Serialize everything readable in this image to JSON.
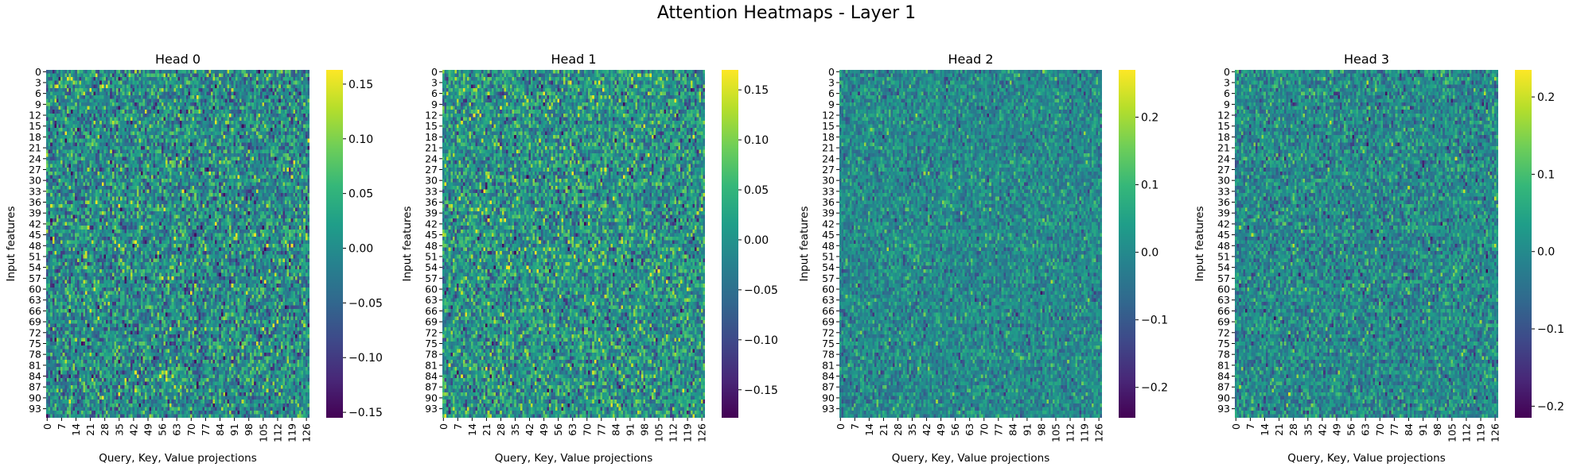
{
  "figure_title": "Attention Heatmaps - Layer 1",
  "chart_data": [
    {
      "type": "heatmap",
      "title": "Head 0",
      "xlabel": "Query, Key, Value projections",
      "ylabel": "Input features",
      "rows": 96,
      "cols": 128,
      "x_ticks": [
        0,
        7,
        14,
        21,
        28,
        35,
        42,
        49,
        56,
        63,
        70,
        77,
        84,
        91,
        98,
        105,
        112,
        119,
        126
      ],
      "y_ticks": [
        0,
        3,
        6,
        9,
        12,
        15,
        18,
        21,
        24,
        27,
        30,
        33,
        36,
        39,
        42,
        45,
        48,
        51,
        54,
        57,
        60,
        63,
        66,
        69,
        72,
        75,
        78,
        81,
        84,
        87,
        90,
        93
      ],
      "colormap": "viridis",
      "vmin": -0.155,
      "vmax": 0.163,
      "colorbar_ticks": [
        "0.15",
        "0.10",
        "0.05",
        "0.00",
        "−0.05",
        "−0.10",
        "−0.15"
      ],
      "colorbar_tick_values": [
        0.15,
        0.1,
        0.05,
        0.0,
        -0.05,
        -0.1,
        -0.15
      ],
      "value_spread": 0.055,
      "seed": 11
    },
    {
      "type": "heatmap",
      "title": "Head 1",
      "xlabel": "Query, Key, Value projections",
      "ylabel": "Input features",
      "rows": 96,
      "cols": 128,
      "x_ticks": [
        0,
        7,
        14,
        21,
        28,
        35,
        42,
        49,
        56,
        63,
        70,
        77,
        84,
        91,
        98,
        105,
        112,
        119,
        126
      ],
      "y_ticks": [
        0,
        3,
        6,
        9,
        12,
        15,
        18,
        21,
        24,
        27,
        30,
        33,
        36,
        39,
        42,
        45,
        48,
        51,
        54,
        57,
        60,
        63,
        66,
        69,
        72,
        75,
        78,
        81,
        84,
        87,
        90,
        93
      ],
      "colormap": "viridis",
      "vmin": -0.178,
      "vmax": 0.17,
      "colorbar_ticks": [
        "0.15",
        "0.10",
        "0.05",
        "0.00",
        "−0.05",
        "−0.10",
        "−0.15"
      ],
      "colorbar_tick_values": [
        0.15,
        0.1,
        0.05,
        0.0,
        -0.05,
        -0.1,
        -0.15
      ],
      "value_spread": 0.058,
      "seed": 23
    },
    {
      "type": "heatmap",
      "title": "Head 2",
      "xlabel": "Query, Key, Value projections",
      "ylabel": "Input features",
      "rows": 96,
      "cols": 128,
      "x_ticks": [
        0,
        7,
        14,
        21,
        28,
        35,
        42,
        49,
        56,
        63,
        70,
        77,
        84,
        91,
        98,
        105,
        112,
        119,
        126
      ],
      "y_ticks": [
        0,
        3,
        6,
        9,
        12,
        15,
        18,
        21,
        24,
        27,
        30,
        33,
        36,
        39,
        42,
        45,
        48,
        51,
        54,
        57,
        60,
        63,
        66,
        69,
        72,
        75,
        78,
        81,
        84,
        87,
        90,
        93
      ],
      "colormap": "viridis",
      "vmin": -0.245,
      "vmax": 0.27,
      "colorbar_ticks": [
        "0.2",
        "0.1",
        "0.0",
        "−0.1",
        "−0.2"
      ],
      "colorbar_tick_values": [
        0.2,
        0.1,
        0.0,
        -0.1,
        -0.2
      ],
      "value_spread": 0.058,
      "seed": 37
    },
    {
      "type": "heatmap",
      "title": "Head 3",
      "xlabel": "Query, Key, Value projections",
      "ylabel": "Input features",
      "rows": 96,
      "cols": 128,
      "x_ticks": [
        0,
        7,
        14,
        21,
        28,
        35,
        42,
        49,
        56,
        63,
        70,
        77,
        84,
        91,
        98,
        105,
        112,
        119,
        126
      ],
      "y_ticks": [
        0,
        3,
        6,
        9,
        12,
        15,
        18,
        21,
        24,
        27,
        30,
        33,
        36,
        39,
        42,
        45,
        48,
        51,
        54,
        57,
        60,
        63,
        66,
        69,
        72,
        75,
        78,
        81,
        84,
        87,
        90,
        93
      ],
      "colormap": "viridis",
      "vmin": -0.215,
      "vmax": 0.235,
      "colorbar_ticks": [
        "0.2",
        "0.1",
        "0.0",
        "−0.1",
        "−0.2"
      ],
      "colorbar_tick_values": [
        0.2,
        0.1,
        0.0,
        -0.1,
        -0.2
      ],
      "value_spread": 0.058,
      "seed": 53
    }
  ]
}
